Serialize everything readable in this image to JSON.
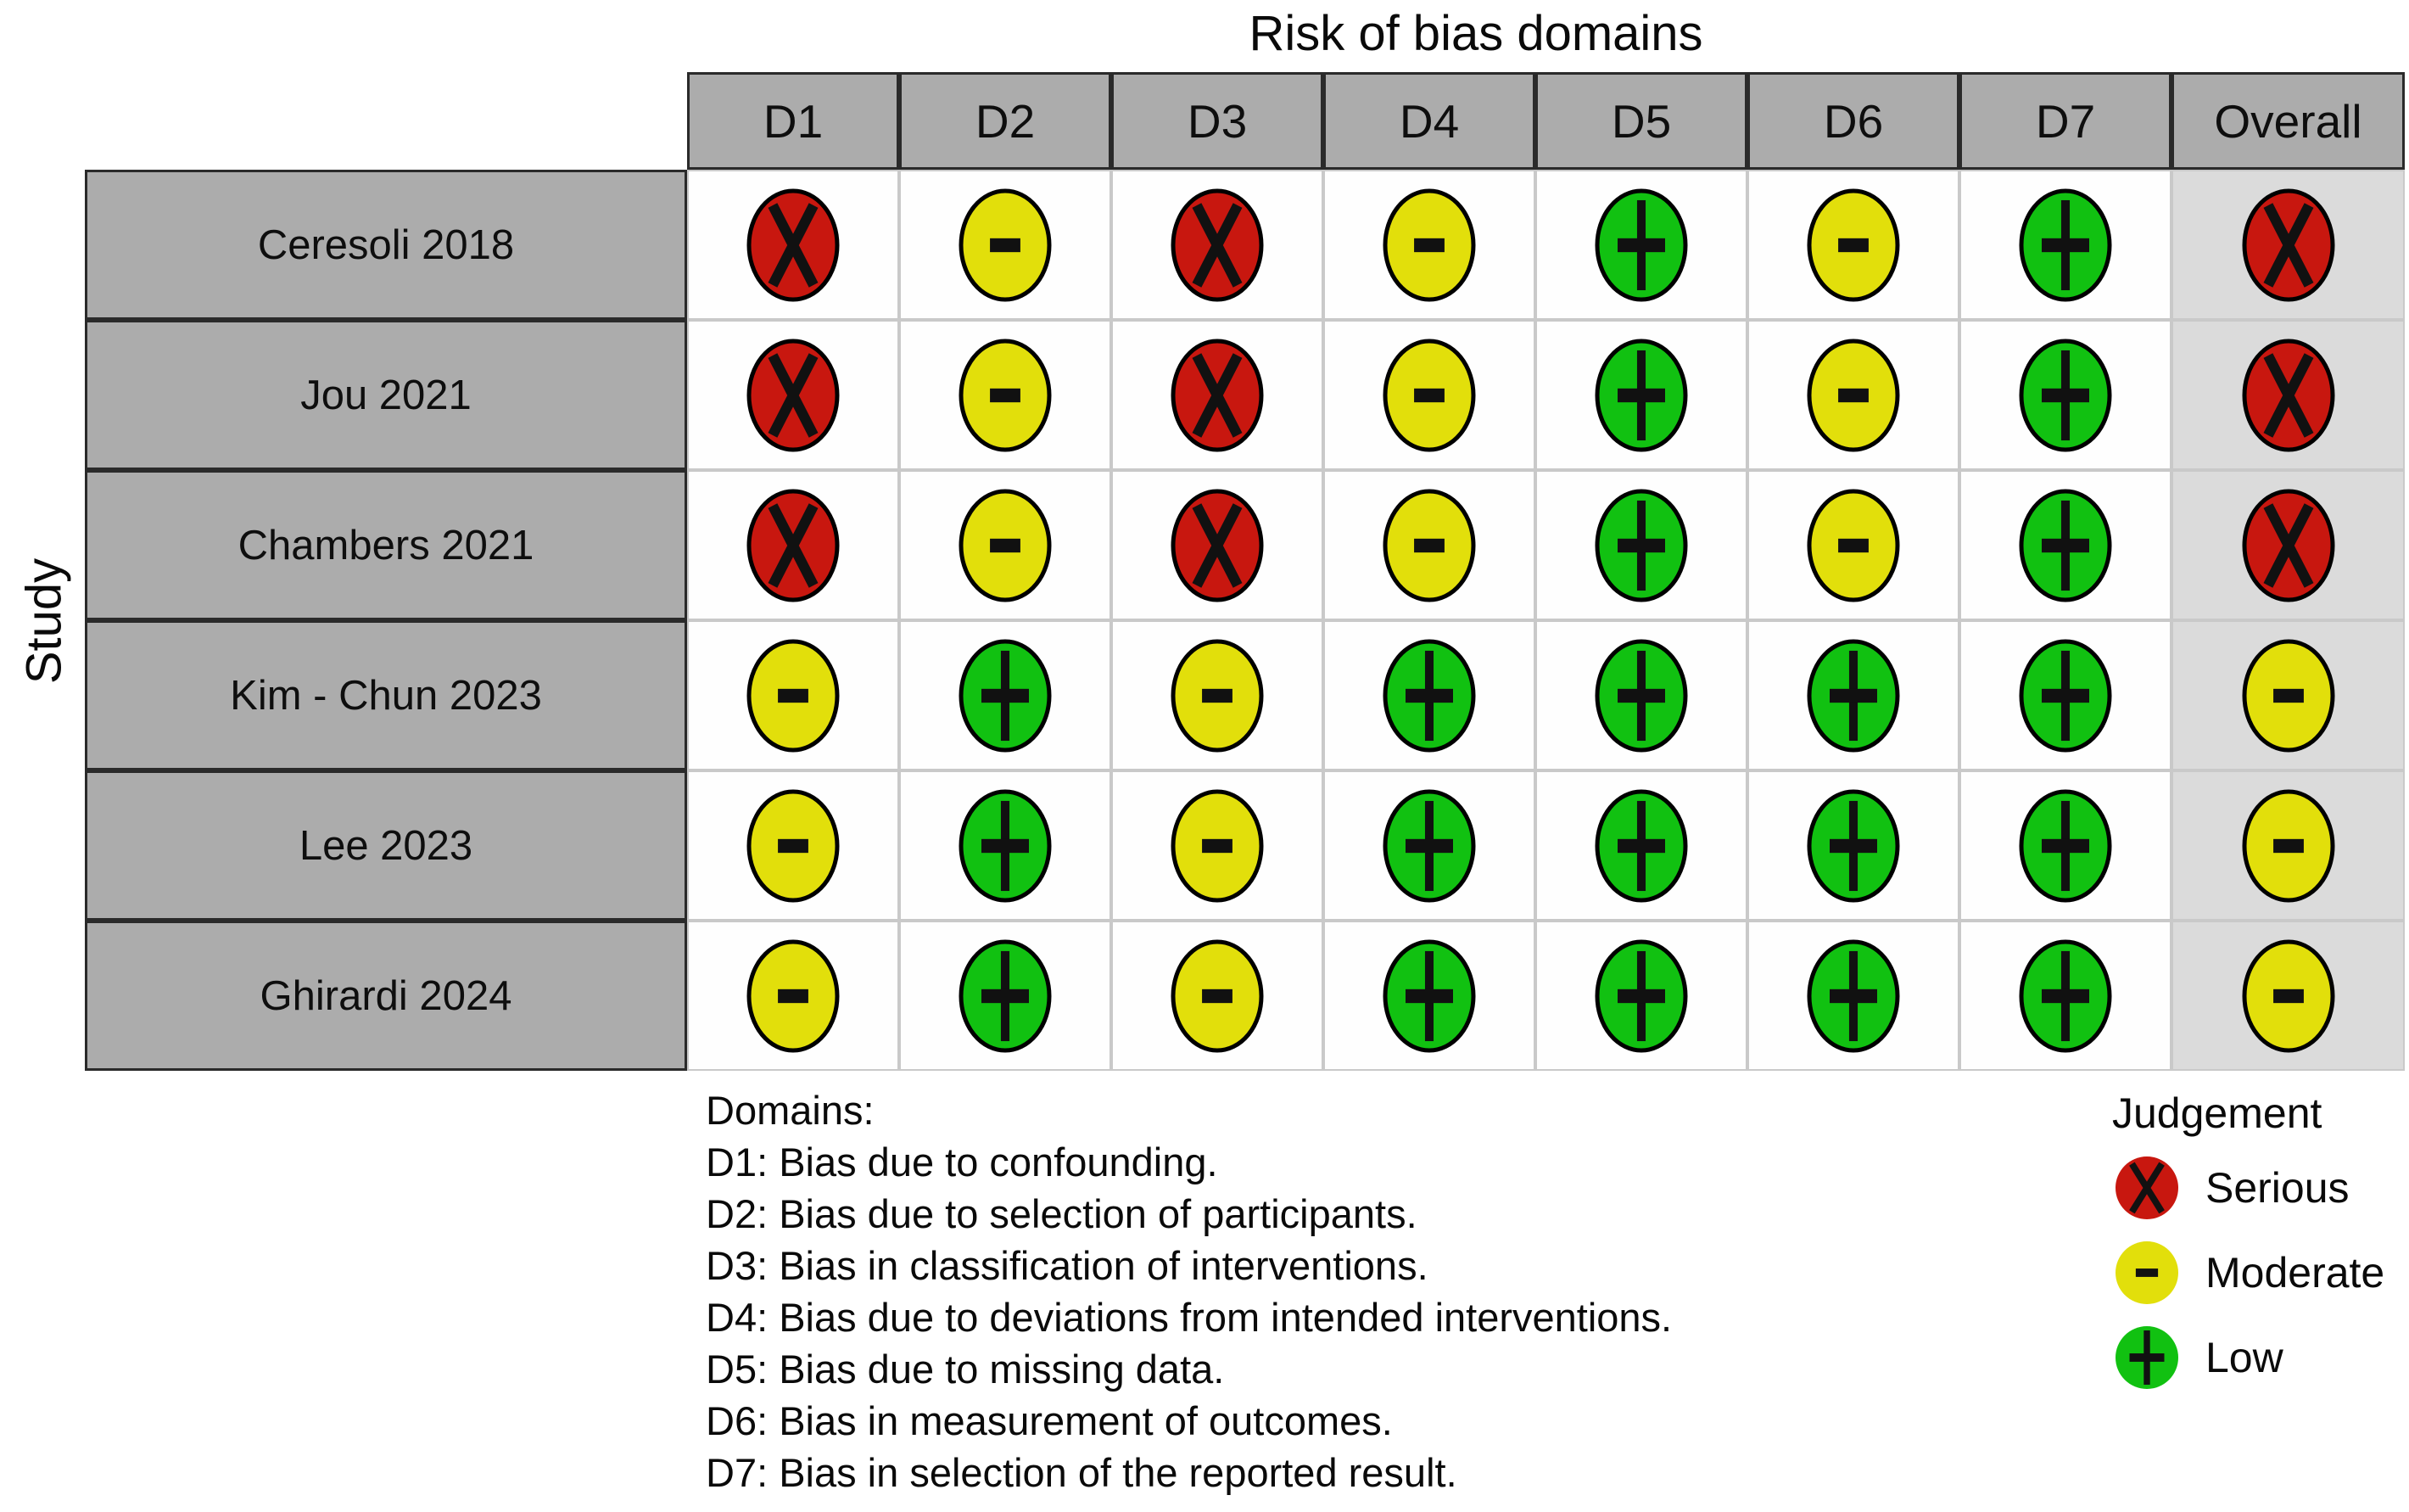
{
  "chart_data": {
    "type": "heatmap",
    "subtype": "risk-of-bias-traffic-light",
    "title": "Risk of bias domains",
    "ylabel": "Study",
    "x_categories": [
      "D1",
      "D2",
      "D3",
      "D4",
      "D5",
      "D6",
      "D7",
      "Overall"
    ],
    "y_categories": [
      "Ceresoli 2018",
      "Jou 2021",
      "Chambers 2021",
      "Kim - Chun 2023",
      "Lee 2023",
      "Ghirardi 2024"
    ],
    "values": [
      [
        "Serious",
        "Moderate",
        "Serious",
        "Moderate",
        "Low",
        "Moderate",
        "Low",
        "Serious"
      ],
      [
        "Serious",
        "Moderate",
        "Serious",
        "Moderate",
        "Low",
        "Moderate",
        "Low",
        "Serious"
      ],
      [
        "Serious",
        "Moderate",
        "Serious",
        "Moderate",
        "Low",
        "Moderate",
        "Low",
        "Serious"
      ],
      [
        "Moderate",
        "Low",
        "Moderate",
        "Low",
        "Low",
        "Low",
        "Low",
        "Moderate"
      ],
      [
        "Moderate",
        "Low",
        "Moderate",
        "Low",
        "Low",
        "Low",
        "Low",
        "Moderate"
      ],
      [
        "Moderate",
        "Low",
        "Moderate",
        "Low",
        "Low",
        "Low",
        "Low",
        "Moderate"
      ]
    ],
    "legend_position": "bottom-right",
    "grid": true
  },
  "judgements": {
    "Serious": {
      "symbol": "x",
      "label": "Serious",
      "color": "#C8170F"
    },
    "Moderate": {
      "symbol": "-",
      "label": "Moderate",
      "color": "#E2DF0B"
    },
    "Low": {
      "symbol": "+",
      "label": "Low",
      "color": "#11C111"
    }
  },
  "legend": {
    "title": "Judgement",
    "items": [
      {
        "judgement": "Serious",
        "label": "Serious"
      },
      {
        "judgement": "Moderate",
        "label": "Moderate"
      },
      {
        "judgement": "Low",
        "label": "Low"
      }
    ]
  },
  "footer": {
    "heading": "Domains:",
    "lines": [
      "D1: Bias due to confounding.",
      "D2: Bias due to selection of participants.",
      "D3: Bias in classification of interventions.",
      "D4: Bias due to deviations from intended interventions.",
      "D5: Bias due to missing data.",
      "D6: Bias in measurement of outcomes.",
      "D7: Bias in selection of the reported result."
    ]
  },
  "colors": {
    "header_fill": "#ACACAC",
    "overall_fill": "#DBDBDB",
    "cell_fill": "#FEFEFE",
    "grid_line": "#C9C9C9",
    "frame_line": "#2A2A2A",
    "symbol": "#111111"
  }
}
